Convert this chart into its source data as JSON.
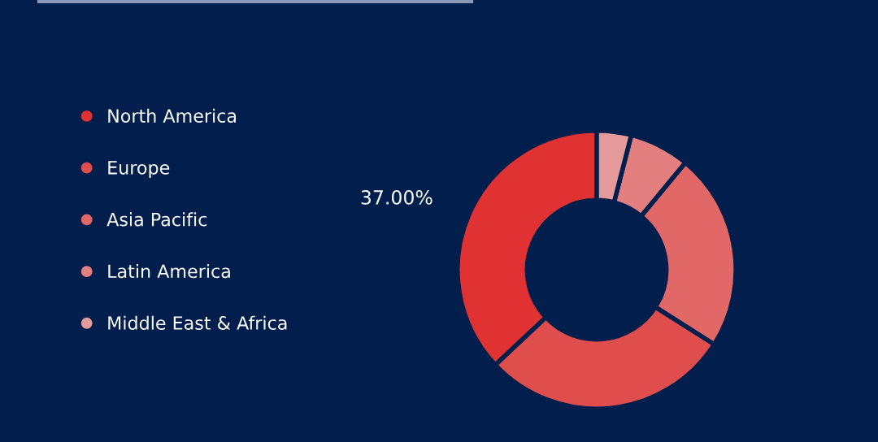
{
  "chart_data": {
    "type": "donut",
    "categories": [
      "North America",
      "Europe",
      "Asia Pacific",
      "Latin America",
      "Middle East & Africa"
    ],
    "values": [
      37,
      29,
      23,
      7,
      4
    ],
    "colors": [
      "#e03232",
      "#e04d4d",
      "#e26868",
      "#e47f7f",
      "#e59a9a"
    ],
    "value_labels": [
      "37.00%",
      null,
      null,
      null,
      null
    ],
    "legend": "left"
  }
}
